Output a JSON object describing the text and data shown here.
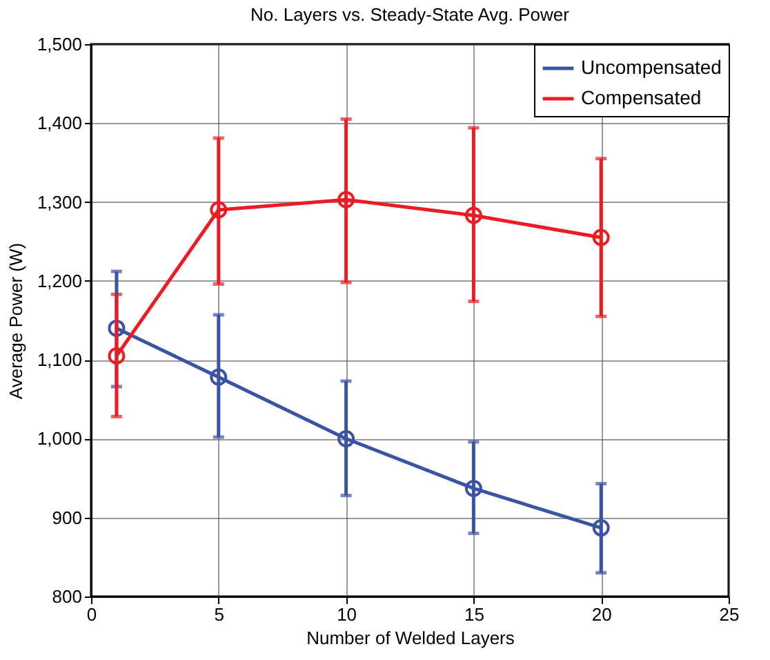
{
  "chart_data": {
    "type": "line",
    "title": "No. Layers vs. Steady-State Avg. Power",
    "xlabel": "Number of Welded Layers",
    "ylabel": "Average Power (W)",
    "x": [
      1,
      5,
      10,
      15,
      20
    ],
    "series": [
      {
        "name": "Uncompensated",
        "color": "#3a53a4",
        "values": [
          1140,
          1078,
          1000,
          937,
          887
        ],
        "errors": [
          [
            1066,
            1212
          ],
          [
            1002,
            1157
          ],
          [
            928,
            1073
          ],
          [
            880,
            996
          ],
          [
            830,
            943
          ]
        ]
      },
      {
        "name": "Compensated",
        "color": "#ed1c24",
        "values": [
          1105,
          1290,
          1303,
          1283,
          1255
        ],
        "errors": [
          [
            1028,
            1183
          ],
          [
            1196,
            1381
          ],
          [
            1198,
            1405
          ],
          [
            1174,
            1394
          ],
          [
            1155,
            1355
          ]
        ]
      }
    ],
    "xlim": [
      0,
      25
    ],
    "xticks": [
      0,
      5,
      10,
      15,
      20,
      25
    ],
    "ylim": [
      800,
      1500
    ],
    "yticks": [
      {
        "value": 800,
        "label": "800"
      },
      {
        "value": 900,
        "label": "900"
      },
      {
        "value": 1000,
        "label": "1,000"
      },
      {
        "value": 1100,
        "label": "1,100"
      },
      {
        "value": 1200,
        "label": "1,200"
      },
      {
        "value": 1300,
        "label": "1,300"
      },
      {
        "value": 1400,
        "label": "1,400"
      },
      {
        "value": 1500,
        "label": "1,500"
      }
    ],
    "grid": true,
    "legend": "top right",
    "marker": "circle",
    "line_style": "solid"
  }
}
